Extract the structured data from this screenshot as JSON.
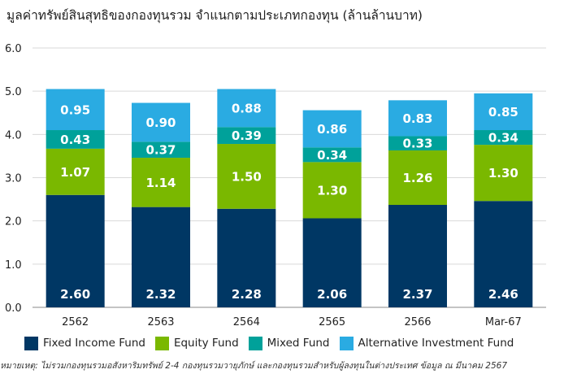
{
  "title": "มูลค่าทรัพย์สินสุทธิของกองทุนรวม จำแนกตามประเภทกองทุน (ล้านล้านบาท)",
  "note": "หมายเหตุ: ไม่รวมกองทุนรวมอสังหาริมทรัพย์ 2-4 กองทุนรวมวายุภักษ์ และกองทุนรวมสำหรับผู้ลงทุนในต่างประเทศ ข้อมูล ณ มีนาคม 2567",
  "chart_data": {
    "type": "bar",
    "stacked": true,
    "categories": [
      "2562",
      "2563",
      "2564",
      "2565",
      "2566",
      "Mar-67"
    ],
    "series": [
      {
        "name": "Fixed Income Fund",
        "color": "#003764",
        "values": [
          2.6,
          2.32,
          2.28,
          2.06,
          2.37,
          2.46
        ]
      },
      {
        "name": "Equity Fund",
        "color": "#7ab800",
        "values": [
          1.07,
          1.14,
          1.5,
          1.3,
          1.26,
          1.3
        ]
      },
      {
        "name": "Mixed Fund",
        "color": "#00a19a",
        "values": [
          0.43,
          0.37,
          0.39,
          0.34,
          0.33,
          0.34
        ]
      },
      {
        "name": "Alternative Investment Fund",
        "color": "#2aabe2",
        "values": [
          0.95,
          0.9,
          0.88,
          0.86,
          0.83,
          0.85
        ]
      }
    ],
    "value_labels": [
      [
        "2.60",
        "2.32",
        "2.28",
        "2.06",
        "2.37",
        "2.46"
      ],
      [
        "1.07",
        "1.14",
        "1.50",
        "1.30",
        "1.26",
        "1.30"
      ],
      [
        "0.43",
        "0.37",
        "0.39",
        "0.34",
        "0.33",
        "0.34"
      ],
      [
        "0.95",
        "0.90",
        "0.88",
        "0.86",
        "0.83",
        "0.85"
      ]
    ],
    "ylim": [
      0,
      6
    ],
    "yticks": [
      "0.0",
      "1.0",
      "2.0",
      "3.0",
      "4.0",
      "5.0",
      "6.0"
    ],
    "grid": true,
    "legend_position": "bottom"
  }
}
